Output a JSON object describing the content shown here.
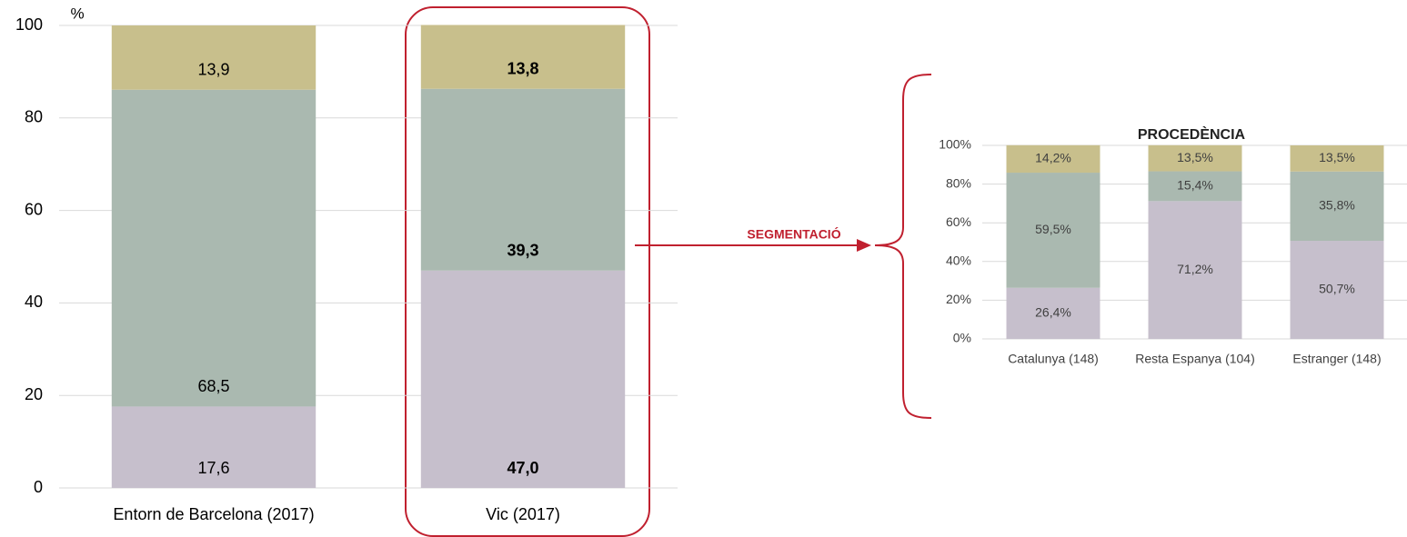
{
  "chart_data": [
    {
      "type": "stacked_bar",
      "y_unit_label": "%",
      "categories": [
        "Entorn de Barcelona (2017)",
        "Vic (2017)"
      ],
      "series": [
        {
          "color": "#c6bfcc",
          "values": [
            17.6,
            47.0
          ],
          "value_labels": [
            "17,6",
            "47,0"
          ]
        },
        {
          "color": "#aab9b0",
          "values": [
            68.5,
            39.3
          ],
          "value_labels": [
            "68,5",
            "39,3"
          ]
        },
        {
          "color": "#c8bf8c",
          "values": [
            13.9,
            13.8
          ],
          "value_labels": [
            "13,9",
            "13,8"
          ]
        }
      ],
      "ylim": [
        0,
        100
      ],
      "yticks": [
        0,
        20,
        40,
        60,
        80,
        100
      ],
      "grid": true,
      "label_position": "inside_base",
      "annotation": "SEGMENTACIÓ"
    },
    {
      "type": "stacked_bar",
      "title": "PROCEDÈNCIA",
      "categories": [
        "Catalunya (148)",
        "Resta Espanya (104)",
        "Estranger (148)"
      ],
      "series": [
        {
          "color": "#c6bfcc",
          "values": [
            26.4,
            71.2,
            50.7
          ],
          "value_labels": [
            "26,4%",
            "71,2%",
            "50,7%"
          ]
        },
        {
          "color": "#aab9b0",
          "values": [
            59.5,
            15.4,
            35.8
          ],
          "value_labels": [
            "59,5%",
            "15,4%",
            "35,8%"
          ]
        },
        {
          "color": "#c8bf8c",
          "values": [
            14.2,
            13.5,
            13.5
          ],
          "value_labels": [
            "14,2%",
            "13,5%",
            "13,5%"
          ]
        }
      ],
      "ylim": [
        0,
        100
      ],
      "yticks": [
        {
          "value": 0,
          "label": "0%"
        },
        {
          "value": 20,
          "label": "20%"
        },
        {
          "value": 40,
          "label": "40%"
        },
        {
          "value": 60,
          "label": "60%"
        },
        {
          "value": 80,
          "label": "80%"
        },
        {
          "value": 100,
          "label": "100%"
        }
      ],
      "grid": true,
      "label_position": "center"
    }
  ]
}
